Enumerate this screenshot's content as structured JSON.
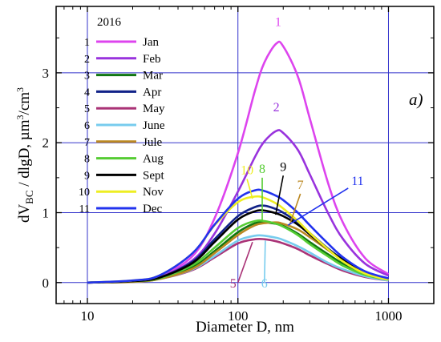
{
  "chart_data": {
    "type": "line",
    "title": "",
    "xlabel": "Diameter D, nm",
    "ylabel_parts": {
      "a": "dV",
      "b": "BC",
      "c": " / dlgD, µm",
      "d": "3",
      "e": "/cm",
      "f": "3"
    },
    "x_scale": "log",
    "xlim": [
      6.2,
      2000
    ],
    "ylim": [
      -0.3,
      3.95
    ],
    "x_ticks": [
      10,
      100,
      1000
    ],
    "x_tick_labels": [
      "10",
      "100",
      "1000"
    ],
    "y_ticks": [
      0,
      1,
      2,
      3
    ],
    "y_tick_labels": [
      "0",
      "1",
      "2",
      "3"
    ],
    "grid": true,
    "legend": {
      "title": "2016",
      "placement": "top-left"
    },
    "panel_label": "a)",
    "x": [
      10,
      20,
      30,
      50,
      70,
      100,
      130,
      150,
      180,
      200,
      250,
      300,
      400,
      500,
      700,
      1000
    ],
    "series": [
      {
        "num": "1",
        "name": "Jan",
        "color": "#dd44ee",
        "label": "1",
        "label_at": [
          185,
          3.6
        ],
        "values": [
          0.0,
          0.02,
          0.09,
          0.38,
          0.92,
          1.85,
          2.75,
          3.15,
          3.42,
          3.38,
          2.95,
          2.35,
          1.4,
          0.85,
          0.35,
          0.12
        ]
      },
      {
        "num": "2",
        "name": "Feb",
        "color": "#9933dd",
        "label": "2",
        "label_at": [
          180,
          2.38
        ],
        "values": [
          0.0,
          0.02,
          0.08,
          0.32,
          0.7,
          1.3,
          1.8,
          2.02,
          2.17,
          2.14,
          1.9,
          1.55,
          0.98,
          0.62,
          0.27,
          0.1
        ]
      },
      {
        "num": "3",
        "name": "Mar",
        "color": "#117711",
        "label": "",
        "values": [
          0.0,
          0.02,
          0.06,
          0.22,
          0.45,
          0.72,
          0.85,
          0.86,
          0.84,
          0.81,
          0.7,
          0.58,
          0.4,
          0.27,
          0.13,
          0.05
        ]
      },
      {
        "num": "4",
        "name": "Apr",
        "color": "#112288",
        "label": "",
        "values": [
          0.0,
          0.02,
          0.07,
          0.3,
          0.62,
          0.95,
          1.08,
          1.1,
          1.05,
          1.0,
          0.86,
          0.71,
          0.48,
          0.33,
          0.15,
          0.05
        ]
      },
      {
        "num": "5",
        "name": "May",
        "color": "#aa3377",
        "label": "5",
        "label_at": [
          100,
          0.0
        ],
        "label_from": [
          125,
          0.58
        ],
        "values": [
          0.0,
          0.01,
          0.05,
          0.18,
          0.36,
          0.56,
          0.62,
          0.62,
          0.59,
          0.56,
          0.48,
          0.39,
          0.26,
          0.17,
          0.08,
          0.03
        ]
      },
      {
        "num": "6",
        "name": "June",
        "color": "#77ccee",
        "label": "6",
        "label_at": [
          150,
          0.0
        ],
        "label_from": [
          152,
          0.6
        ],
        "values": [
          0.0,
          0.01,
          0.05,
          0.19,
          0.38,
          0.6,
          0.67,
          0.67,
          0.64,
          0.61,
          0.52,
          0.43,
          0.28,
          0.19,
          0.09,
          0.03
        ]
      },
      {
        "num": "7",
        "name": "Jule",
        "color": "#bb8822",
        "label": "7",
        "label_at": [
          260,
          1.27
        ],
        "label_from": [
          220,
          0.82
        ],
        "values": [
          0.0,
          0.01,
          0.05,
          0.2,
          0.42,
          0.68,
          0.82,
          0.85,
          0.86,
          0.84,
          0.76,
          0.65,
          0.46,
          0.31,
          0.15,
          0.05
        ]
      },
      {
        "num": "8",
        "name": "Aug",
        "color": "#55cc33",
        "label": "8",
        "label_at": [
          145,
          1.5
        ],
        "label_from": [
          145,
          0.88
        ],
        "values": [
          0.0,
          0.02,
          0.06,
          0.25,
          0.5,
          0.78,
          0.88,
          0.88,
          0.84,
          0.8,
          0.68,
          0.55,
          0.37,
          0.24,
          0.11,
          0.04
        ]
      },
      {
        "num": "9",
        "name": "Sept",
        "color": "#000000",
        "label": "9",
        "label_at": [
          200,
          1.53
        ],
        "label_from": [
          178,
          0.97
        ],
        "values": [
          0.0,
          0.02,
          0.07,
          0.28,
          0.58,
          0.9,
          1.02,
          1.03,
          0.99,
          0.95,
          0.83,
          0.69,
          0.47,
          0.32,
          0.15,
          0.05
        ]
      },
      {
        "num": "10",
        "name": "Nov",
        "color": "#eeee22",
        "label": "10",
        "label_at": [
          115,
          1.48
        ],
        "label_from": [
          125,
          1.2
        ],
        "values": [
          0.0,
          0.03,
          0.1,
          0.42,
          0.82,
          1.15,
          1.23,
          1.21,
          1.13,
          1.06,
          0.88,
          0.71,
          0.47,
          0.3,
          0.13,
          0.04
        ]
      },
      {
        "num": "11",
        "name": "Dec",
        "color": "#2233ee",
        "label": "11",
        "label_at": [
          540,
          1.35
        ],
        "label_from": [
          215,
          0.82
        ],
        "values": [
          0.0,
          0.03,
          0.1,
          0.42,
          0.83,
          1.2,
          1.32,
          1.31,
          1.24,
          1.18,
          1.0,
          0.82,
          0.55,
          0.36,
          0.16,
          0.06
        ]
      }
    ]
  }
}
